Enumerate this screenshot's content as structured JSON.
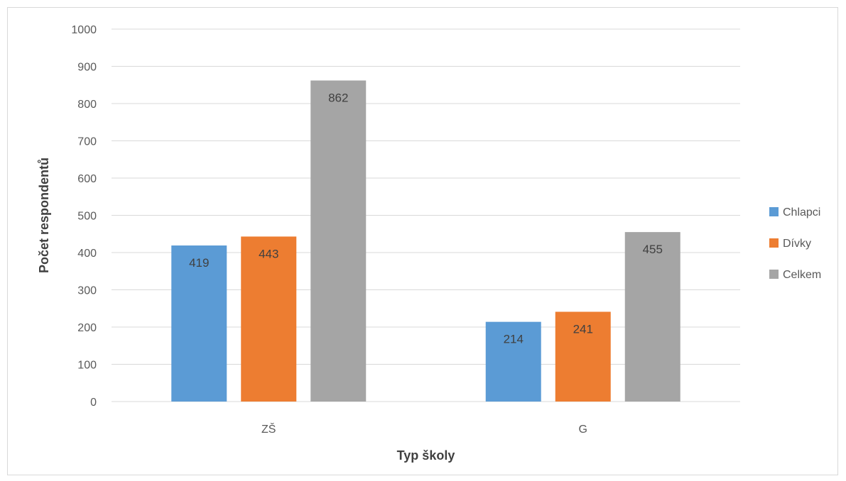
{
  "chart_data": {
    "type": "bar",
    "categories": [
      "ZŠ",
      "G"
    ],
    "series": [
      {
        "name": "Chlapci",
        "values": [
          419,
          214
        ],
        "color": "#5B9BD5"
      },
      {
        "name": "Dívky",
        "values": [
          443,
          241
        ],
        "color": "#ED7D31"
      },
      {
        "name": "Celkem",
        "values": [
          862,
          455
        ],
        "color": "#A5A5A5"
      }
    ],
    "xlabel": "Typ školy",
    "ylabel": "Počet respondentů",
    "ylim": [
      0,
      1000
    ],
    "yticks": [
      0,
      100,
      200,
      300,
      400,
      500,
      600,
      700,
      800,
      900,
      1000
    ],
    "grid": true,
    "legend": "right",
    "data_labels": true
  }
}
